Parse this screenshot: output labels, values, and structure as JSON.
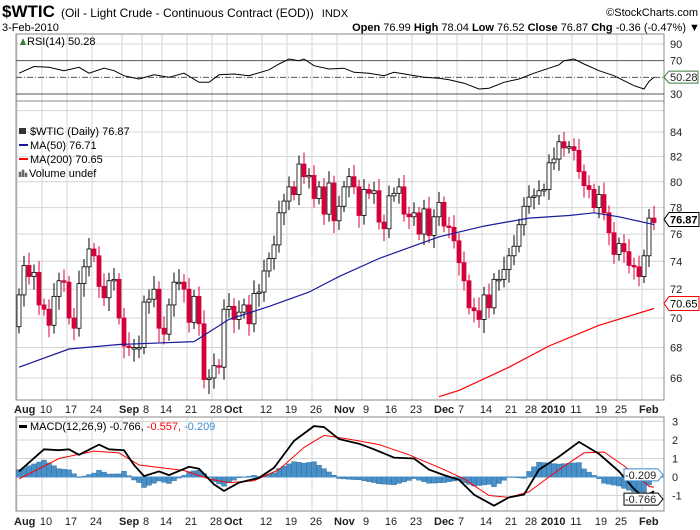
{
  "header": {
    "symbol": "$WTIC",
    "name": "(Oil - Light Crude - Continuous Contract (EOD))",
    "exchange": "INDX",
    "copyright": "©StockCharts.com",
    "date": "3-Feb-2010",
    "open_label": "Open",
    "open": "76.99",
    "high_label": "High",
    "high": "78.04",
    "low_label": "Low",
    "low": "76.52",
    "close_label": "Close",
    "close": "76.87",
    "chg_label": "Chg",
    "chg": "-0.36 (-0.47%)",
    "chg_arrow": "▼"
  },
  "colors": {
    "up": "#ffffff",
    "down": "#d4003a",
    "ma50": "#1a1a9c",
    "ma200": "#ff0000",
    "hist": "#4a90c8",
    "signal": "#ff0000",
    "macd": "#000000"
  },
  "chart_data": [
    {
      "type": "line",
      "title": "RSI(14) 50.28",
      "legend": "RSI(14) 50.28",
      "ylim": [
        0,
        100
      ],
      "yticks": [
        "90",
        "70",
        "30"
      ],
      "reference_lines": [
        70,
        50,
        30
      ],
      "last_value_tag": "50.28",
      "points": [
        [
          0,
          55
        ],
        [
          3,
          63
        ],
        [
          6,
          62
        ],
        [
          9,
          58
        ],
        [
          12,
          62
        ],
        [
          14,
          55
        ],
        [
          17,
          61
        ],
        [
          19,
          58
        ],
        [
          21,
          52
        ],
        [
          24,
          48
        ],
        [
          27,
          53
        ],
        [
          30,
          50
        ],
        [
          33,
          55
        ],
        [
          36,
          44
        ],
        [
          38,
          44
        ],
        [
          40,
          53
        ],
        [
          43,
          54
        ],
        [
          46,
          52
        ],
        [
          50,
          59
        ],
        [
          52,
          66
        ],
        [
          54,
          72
        ],
        [
          56,
          70
        ],
        [
          57,
          72
        ],
        [
          59,
          64
        ],
        [
          62,
          60
        ],
        [
          65,
          61
        ],
        [
          67,
          56
        ],
        [
          70,
          55
        ],
        [
          73,
          52
        ],
        [
          75,
          56
        ],
        [
          78,
          53
        ],
        [
          81,
          50
        ],
        [
          84,
          49
        ],
        [
          86,
          47
        ],
        [
          89,
          43
        ],
        [
          92,
          36
        ],
        [
          94,
          37
        ],
        [
          97,
          44
        ],
        [
          100,
          48
        ],
        [
          103,
          55
        ],
        [
          106,
          61
        ],
        [
          108,
          65
        ],
        [
          109,
          70
        ],
        [
          111,
          72
        ],
        [
          113,
          66
        ],
        [
          116,
          58
        ],
        [
          119,
          52
        ],
        [
          121,
          46
        ],
        [
          123,
          40
        ],
        [
          125,
          36
        ],
        [
          126,
          45
        ],
        [
          127,
          50.28
        ]
      ]
    },
    {
      "type": "candlestick",
      "title": "$WTIC (Daily) 76.87",
      "legend": [
        {
          "label": "$WTIC (Daily) 76.87"
        },
        {
          "label": "MA(50) 76.71"
        },
        {
          "label": "MA(200) 70.65"
        },
        {
          "label": "Volume undef"
        }
      ],
      "scale": "log",
      "ylim": [
        64.5,
        85
      ],
      "yticks": [
        "84",
        "82",
        "80",
        "78",
        "76",
        "74",
        "72",
        "70",
        "68",
        "66"
      ],
      "first_open": 69.4,
      "closes": [
        71.6,
        73.7,
        72.9,
        73.2,
        70.9,
        70.6,
        69.5,
        71.5,
        72.6,
        72.5,
        70.0,
        69.3,
        72.4,
        73.6,
        74.9,
        74.4,
        72.2,
        71.4,
        72.6,
        72.7,
        70.0,
        68.1,
        68.0,
        68.0,
        68.0,
        71.1,
        71.3,
        72.0,
        69.3,
        68.9,
        70.9,
        72.5,
        72.5,
        72.0,
        69.7,
        71.5,
        69.6,
        65.9,
        66.0,
        66.8,
        66.7,
        70.6,
        70.8,
        69.9,
        70.4,
        70.9,
        69.6,
        71.7,
        71.8,
        73.3,
        74.2,
        75.2,
        77.6,
        78.5,
        79.6,
        79.0,
        81.4,
        80.4,
        80.5,
        78.7,
        79.6,
        77.5,
        79.9,
        77.0,
        78.1,
        79.6,
        80.4,
        79.6,
        77.4,
        79.4,
        79.1,
        79.3,
        76.9,
        76.4,
        78.9,
        79.1,
        79.6,
        77.5,
        77.3,
        77.6,
        76.0,
        77.9,
        75.9,
        77.3,
        78.4,
        76.6,
        76.5,
        75.5,
        73.9,
        72.6,
        70.7,
        70.5,
        69.9,
        71.6,
        70.7,
        72.7,
        72.7,
        73.4,
        74.4,
        75.1,
        76.7,
        78.1,
        78.8,
        78.9,
        79.3,
        79.4,
        81.5,
        81.8,
        83.2,
        82.7,
        82.8,
        82.5,
        80.8,
        79.7,
        79.4,
        78.0,
        79.0,
        77.6,
        76.1,
        74.5,
        75.3,
        74.7,
        73.7,
        73.6,
        72.9,
        74.4,
        77.2,
        76.87
      ],
      "ma50": [
        [
          0,
          66.7
        ],
        [
          10,
          67.9
        ],
        [
          20,
          68.2
        ],
        [
          35,
          68.4
        ],
        [
          42,
          69.9
        ],
        [
          50,
          70.8
        ],
        [
          58,
          71.8
        ],
        [
          64,
          72.9
        ],
        [
          72,
          74.2
        ],
        [
          84,
          75.8
        ],
        [
          93,
          76.6
        ],
        [
          102,
          77.2
        ],
        [
          110,
          77.4
        ],
        [
          115,
          77.6
        ],
        [
          120,
          77.3
        ],
        [
          127,
          76.71
        ]
      ],
      "ma200": [
        [
          84,
          64.8
        ],
        [
          88,
          65.2
        ],
        [
          98,
          66.7
        ],
        [
          106,
          68.1
        ],
        [
          116,
          69.5
        ],
        [
          127,
          70.65
        ]
      ],
      "tags": {
        "close": "76.87",
        "ma200": "70.65"
      }
    },
    {
      "type": "line+bar",
      "title": "MACD(12,26,9)",
      "legend_name": "MACD(12,26,9)",
      "legend_macd": "-0.766,",
      "legend_signal": "-0.557,",
      "legend_hist": "-0.209",
      "ylim": [
        -2,
        3.3
      ],
      "yticks": [
        {
          "v": 3,
          "t": "3"
        },
        {
          "v": 2,
          "t": "2"
        },
        {
          "v": 1,
          "t": "1"
        },
        {
          "v": 0,
          "t": "0"
        },
        {
          "v": -1,
          "t": "-1"
        }
      ],
      "tags": {
        "hist": "-0.209",
        "macd": "-0.766"
      },
      "macd": [
        [
          0,
          0.3
        ],
        [
          5,
          1.5
        ],
        [
          8,
          1.45
        ],
        [
          10,
          1.5
        ],
        [
          12,
          1.2
        ],
        [
          16,
          1.75
        ],
        [
          18,
          1.5
        ],
        [
          21,
          1.45
        ],
        [
          23,
          0.65
        ],
        [
          25,
          0.05
        ],
        [
          28,
          0.3
        ],
        [
          30,
          0.1
        ],
        [
          34,
          0.55
        ],
        [
          36,
          0.45
        ],
        [
          39,
          -0.4
        ],
        [
          41,
          -0.75
        ],
        [
          44,
          -0.3
        ],
        [
          48,
          -0.05
        ],
        [
          51,
          0.5
        ],
        [
          55,
          1.95
        ],
        [
          59,
          2.75
        ],
        [
          61,
          2.7
        ],
        [
          64,
          2.05
        ],
        [
          68,
          1.8
        ],
        [
          71,
          1.5
        ],
        [
          75,
          1.05
        ],
        [
          79,
          1.0
        ],
        [
          82,
          0.4
        ],
        [
          85,
          0.1
        ],
        [
          88,
          -0.15
        ],
        [
          91,
          -0.95
        ],
        [
          95,
          -1.55
        ],
        [
          98,
          -1.1
        ],
        [
          101,
          -0.95
        ],
        [
          104,
          0.4
        ],
        [
          108,
          1.1
        ],
        [
          112,
          1.9
        ],
        [
          116,
          1.25
        ],
        [
          120,
          0.3
        ],
        [
          123,
          -0.65
        ],
        [
          125,
          -1.1
        ],
        [
          127,
          -0.766
        ]
      ],
      "signal": [
        [
          0,
          -0.1
        ],
        [
          8,
          1.0
        ],
        [
          15,
          1.4
        ],
        [
          20,
          1.3
        ],
        [
          24,
          0.65
        ],
        [
          33,
          0.35
        ],
        [
          38,
          -0.1
        ],
        [
          42,
          -0.3
        ],
        [
          47,
          -0.2
        ],
        [
          52,
          0.4
        ],
        [
          57,
          1.6
        ],
        [
          61,
          2.25
        ],
        [
          66,
          2.05
        ],
        [
          72,
          1.75
        ],
        [
          78,
          1.2
        ],
        [
          85,
          0.4
        ],
        [
          89,
          -0.1
        ],
        [
          94,
          -1.0
        ],
        [
          98,
          -1.1
        ],
        [
          102,
          -0.8
        ],
        [
          108,
          0.4
        ],
        [
          113,
          1.3
        ],
        [
          117,
          1.35
        ],
        [
          121,
          0.6
        ],
        [
          126,
          -0.5
        ],
        [
          127,
          -0.557
        ]
      ]
    }
  ],
  "x_axis": {
    "ticks": [
      {
        "i": 0,
        "t": "Aug",
        "bold": true
      },
      {
        "i": 5,
        "t": "10"
      },
      {
        "i": 10,
        "t": "17"
      },
      {
        "i": 15,
        "t": "24"
      },
      {
        "i": 21,
        "t": "Sep",
        "bold": true
      },
      {
        "i": 25,
        "t": "8"
      },
      {
        "i": 29,
        "t": "14"
      },
      {
        "i": 34,
        "t": "21"
      },
      {
        "i": 39,
        "t": "28"
      },
      {
        "i": 42,
        "t": "Oct",
        "bold": true
      },
      {
        "i": 49,
        "t": "12"
      },
      {
        "i": 54,
        "t": "19"
      },
      {
        "i": 59,
        "t": "26"
      },
      {
        "i": 64,
        "t": "Nov",
        "bold": true
      },
      {
        "i": 69,
        "t": "9"
      },
      {
        "i": 74,
        "t": "16"
      },
      {
        "i": 79,
        "t": "23"
      },
      {
        "i": 84,
        "t": "Dec",
        "bold": true
      },
      {
        "i": 88,
        "t": "7"
      },
      {
        "i": 93,
        "t": "14"
      },
      {
        "i": 98,
        "t": "21"
      },
      {
        "i": 102,
        "t": "28"
      },
      {
        "i": 106,
        "t": "2010",
        "bold": true
      },
      {
        "i": 111,
        "t": "11"
      },
      {
        "i": 116,
        "t": "19"
      },
      {
        "i": 120,
        "t": "25"
      },
      {
        "i": 125,
        "t": "Feb",
        "bold": true
      }
    ]
  }
}
